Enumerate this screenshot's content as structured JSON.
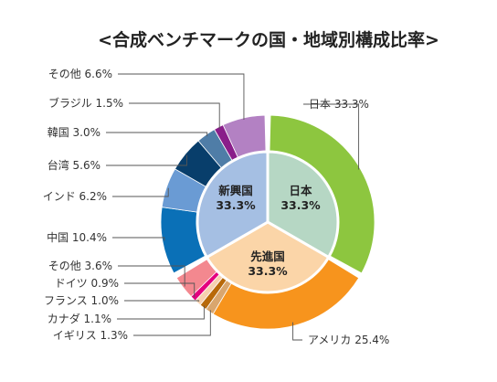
{
  "chart_data": {
    "type": "pie",
    "title": "<合成ベンチマークの国・地域別構成比率>",
    "inner_ring": [
      {
        "name": "日本",
        "label": "日本",
        "value_label": "33.3%",
        "value": 33.3,
        "color": "#b6d7c4"
      },
      {
        "name": "先進国",
        "label": "先進国",
        "value_label": "33.3%",
        "value": 33.3,
        "color": "#fbd5a8"
      },
      {
        "name": "新興国",
        "label": "新興国",
        "value_label": "33.3%",
        "value": 33.3,
        "color": "#a5bfe3"
      }
    ],
    "outer_ring": [
      {
        "name": "日本",
        "label": "日本 33.3%",
        "value": 33.3,
        "color": "#8dc63f"
      },
      {
        "name": "アメリカ",
        "label": "アメリカ 25.4%",
        "value": 25.4,
        "color": "#f7941d"
      },
      {
        "name": "イギリス",
        "label": "イギリス 1.3%",
        "value": 1.3,
        "color": "#d9a66e"
      },
      {
        "name": "カナダ",
        "label": "カナダ 1.1%",
        "value": 1.1,
        "color": "#b8690a"
      },
      {
        "name": "フランス",
        "label": "フランス 1.0%",
        "value": 1.0,
        "color": "#f6d1b0"
      },
      {
        "name": "ドイツ",
        "label": "ドイツ 0.9%",
        "value": 0.9,
        "color": "#e4007f"
      },
      {
        "name": "その他(先進国)",
        "label": "その他 3.6%",
        "value": 3.6,
        "color": "#f3888f"
      },
      {
        "name": "中国",
        "label": "中国 10.4%",
        "value": 10.4,
        "color": "#0a70b7"
      },
      {
        "name": "インド",
        "label": "インド 6.2%",
        "value": 6.2,
        "color": "#6a9bd4"
      },
      {
        "name": "台湾",
        "label": "台湾 5.6%",
        "value": 5.6,
        "color": "#083e6b"
      },
      {
        "name": "韓国",
        "label": "韓国 3.0%",
        "value": 3.0,
        "color": "#4f7da7"
      },
      {
        "name": "ブラジル",
        "label": "ブラジル 1.5%",
        "value": 1.5,
        "color": "#8a1e8a"
      },
      {
        "name": "その他(新興国)",
        "label": "その他 6.6%",
        "value": 6.6,
        "color": "#b381c3"
      }
    ]
  }
}
